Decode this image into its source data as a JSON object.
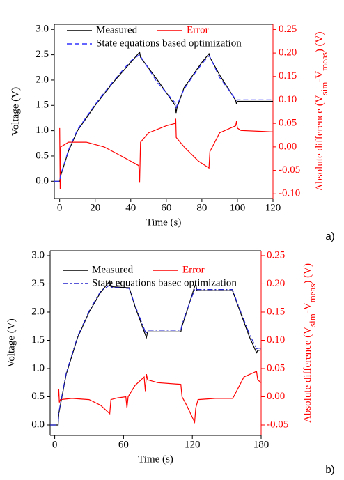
{
  "chart_data": [
    {
      "type": "line",
      "panel_label": "a)",
      "xlabel": "Time (s)",
      "ylabel": "Voltage (V)",
      "y2label_parts": [
        {
          "text": "Absolute difference ("
        },
        {
          "text": "V"
        },
        {
          "text": "sim",
          "sub": true
        },
        {
          "text": "-"
        },
        {
          "text": "V"
        },
        {
          "text": "meas",
          "sub": true
        },
        {
          "text": ")  (V)"
        }
      ],
      "xlim": [
        -3,
        120
      ],
      "xticks": [
        0,
        20,
        40,
        60,
        80,
        100,
        120
      ],
      "ylim": [
        -0.34,
        3.1
      ],
      "yticks": [
        {
          "value": 0,
          "label": "0.0"
        },
        0.5,
        {
          "value": 1,
          "label": "1.0"
        },
        1.5,
        {
          "value": 2,
          "label": "2.0"
        },
        2.5,
        {
          "value": 3,
          "label": "3.0"
        }
      ],
      "y2lim": [
        -0.11,
        0.261
      ],
      "y2ticks": [
        {
          "value": -0.1,
          "label": "-0.10"
        },
        -0.05,
        {
          "value": 0,
          "label": "0.00"
        },
        0.05,
        {
          "value": 0.1,
          "label": "0.10"
        },
        0.15,
        {
          "value": 0.2,
          "label": "0.20"
        },
        0.25
      ],
      "series": [
        {
          "name": "Measured",
          "color": "#000000",
          "dash": "solid",
          "x": [
            -3,
            0,
            0.5,
            5,
            10,
            20,
            30,
            40,
            45,
            45.5,
            55,
            65,
            65.5,
            66,
            70,
            75,
            80,
            84,
            84.5,
            90,
            99,
            99.5,
            100,
            110,
            120
          ],
          "values": [
            0,
            0,
            0.1,
            0.6,
            1.0,
            1.5,
            1.95,
            2.35,
            2.55,
            2.45,
            2.0,
            1.5,
            1.35,
            1.45,
            1.85,
            2.1,
            2.35,
            2.52,
            2.45,
            2.1,
            1.6,
            1.52,
            1.58,
            1.58,
            1.58
          ]
        },
        {
          "name": "Error",
          "color": "#ff0000",
          "dash": "solid",
          "axis": "y2",
          "x": [
            0,
            0.3,
            0.6,
            5,
            15,
            25,
            35,
            44.5,
            45,
            45.5,
            50,
            60,
            65,
            65.3,
            65.6,
            70,
            78,
            84,
            84.5,
            90,
            99,
            99.5,
            100,
            102,
            120
          ],
          "values": [
            0.04,
            -0.09,
            0.0,
            0.01,
            0.01,
            0.0,
            -0.02,
            -0.04,
            -0.075,
            0.01,
            0.03,
            0.045,
            0.05,
            0.06,
            0.02,
            0.0,
            -0.03,
            -0.045,
            -0.01,
            0.03,
            0.045,
            0.055,
            0.04,
            0.035,
            0.032
          ]
        },
        {
          "name": "State equations based optimization",
          "color": "#3030ff",
          "dash": "dash",
          "x": [
            -3,
            0,
            0.5,
            5,
            10,
            20,
            30,
            40,
            45,
            45.5,
            55,
            65,
            65.5,
            66,
            70,
            75,
            80,
            84,
            84.5,
            90,
            99,
            99.5,
            100,
            110,
            120
          ],
          "values": [
            0,
            0,
            0.12,
            0.62,
            1.02,
            1.52,
            1.97,
            2.38,
            2.5,
            2.47,
            1.95,
            1.55,
            1.45,
            1.5,
            1.82,
            2.08,
            2.32,
            2.48,
            2.46,
            2.05,
            1.62,
            1.6,
            1.61,
            1.61,
            1.61
          ]
        }
      ]
    },
    {
      "type": "line",
      "panel_label": "b)",
      "xlabel": "Time (s)",
      "ylabel": "Voltage (V)",
      "y2label_parts": [
        {
          "text": "Absolute difference ("
        },
        {
          "text": "V"
        },
        {
          "text": "sim",
          "sub": true
        },
        {
          "text": "-"
        },
        {
          "text": "V"
        },
        {
          "text": "meas",
          "sub": true
        },
        {
          "text": ")  (V)"
        }
      ],
      "xlim": [
        -4,
        180
      ],
      "xticks": [
        0,
        60,
        120,
        180
      ],
      "ylim": [
        -0.185,
        3.086
      ],
      "yticks": [
        {
          "value": 0,
          "label": "0.0"
        },
        0.5,
        {
          "value": 1,
          "label": "1.0"
        },
        1.5,
        {
          "value": 2,
          "label": "2.0"
        },
        2.5,
        {
          "value": 3,
          "label": "3.0"
        }
      ],
      "y2lim": [
        -0.0685,
        0.2586
      ],
      "y2ticks": [
        -0.05,
        {
          "value": 0,
          "label": "0.00"
        },
        0.05,
        {
          "value": 0.1,
          "label": "0.10"
        },
        0.15,
        {
          "value": 0.2,
          "label": "0.20"
        },
        0.25
      ],
      "series": [
        {
          "name": "Measured",
          "color": "#000000",
          "dash": "solid",
          "x": [
            -4,
            3,
            3.5,
            10,
            20,
            30,
            40,
            48,
            49,
            65,
            70,
            79,
            80,
            81,
            110,
            111,
            115,
            122,
            123,
            124,
            155,
            160,
            170,
            176,
            177,
            180
          ],
          "values": [
            0,
            0,
            0.2,
            0.9,
            1.55,
            2.0,
            2.35,
            2.55,
            2.45,
            2.43,
            2.1,
            1.6,
            1.55,
            1.65,
            1.65,
            1.75,
            2.0,
            2.45,
            2.5,
            2.38,
            2.38,
            2.1,
            1.55,
            1.28,
            1.32,
            1.33
          ]
        },
        {
          "name": "Error",
          "color": "#ff0000",
          "dash": "solid",
          "axis": "y2",
          "x": [
            3,
            3.5,
            4,
            5,
            15,
            30,
            40,
            48,
            49,
            55,
            62,
            63,
            64,
            70,
            78,
            79,
            80,
            81,
            90,
            110,
            111,
            115,
            122,
            123,
            125,
            140,
            155,
            156,
            165,
            176,
            177,
            180
          ],
          "values": [
            0.0,
            0.013,
            -0.01,
            -0.005,
            -0.003,
            -0.005,
            -0.015,
            -0.03,
            -0.005,
            -0.002,
            0.0,
            -0.02,
            0.0,
            0.02,
            0.035,
            0.01,
            0.04,
            0.03,
            0.025,
            0.022,
            0.0,
            -0.015,
            -0.045,
            -0.02,
            -0.005,
            -0.003,
            -0.003,
            0.0,
            0.035,
            0.045,
            0.03,
            0.025
          ]
        },
        {
          "name": "State equations basec optimization",
          "color": "#2020cc",
          "dash": "dashdot",
          "x": [
            -4,
            3,
            3.5,
            10,
            20,
            30,
            40,
            48,
            49,
            65,
            70,
            79,
            80,
            81,
            110,
            111,
            115,
            122,
            123,
            124,
            155,
            160,
            170,
            176,
            177,
            180
          ],
          "values": [
            0,
            0,
            0.22,
            0.92,
            1.57,
            2.02,
            2.37,
            2.48,
            2.44,
            2.42,
            2.12,
            1.65,
            1.62,
            1.68,
            1.68,
            1.78,
            2.02,
            2.4,
            2.42,
            2.4,
            2.4,
            2.12,
            1.6,
            1.35,
            1.36,
            1.36
          ]
        }
      ]
    }
  ]
}
